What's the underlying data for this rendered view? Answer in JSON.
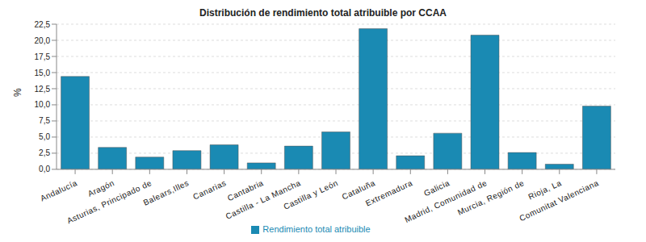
{
  "chart_data": {
    "type": "bar",
    "title": "Distribución de rendimiento total atribuible por CCAA",
    "y_label": "%",
    "categories": [
      "Andalucía",
      "Aragón",
      "Asturias, Principado de",
      "Balears,Illes",
      "Canarias",
      "Cantabria",
      "Castilla - La Mancha",
      "Castilla y León",
      "Cataluña",
      "Extremadura",
      "Galicia",
      "Madrid, Comunidad de",
      "Murcia, Región de",
      "Rioja, La",
      "Comunitat Valenciana"
    ],
    "series": [
      {
        "name": "Rendimiento total atribuible",
        "color": "#1a8ab3",
        "values": [
          14.4,
          3.4,
          1.9,
          2.9,
          3.8,
          1.0,
          3.6,
          5.8,
          21.8,
          2.1,
          5.6,
          20.8,
          2.6,
          0.8,
          9.8
        ]
      }
    ],
    "ylim": [
      0,
      22.5
    ],
    "yticks": [
      {
        "value": 0,
        "label": "0,0"
      },
      {
        "value": 2.5,
        "label": "2,5"
      },
      {
        "value": 5,
        "label": "5,0"
      },
      {
        "value": 7.5,
        "label": "7,5"
      },
      {
        "value": 10,
        "label": "10,0"
      },
      {
        "value": 12.5,
        "label": "12,5"
      },
      {
        "value": 15,
        "label": "15,0"
      },
      {
        "value": 17.5,
        "label": "17,5"
      },
      {
        "value": 20,
        "label": "20,0"
      },
      {
        "value": 22.5,
        "label": "22,5"
      }
    ],
    "grid": true,
    "legend": "bottom"
  }
}
